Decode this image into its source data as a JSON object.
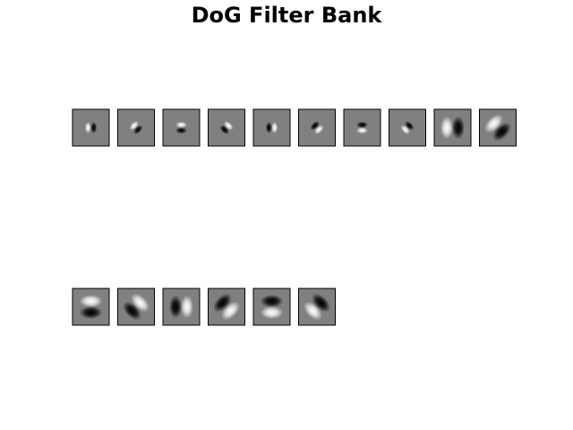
{
  "title": "DoG Filter Bank",
  "colors": {
    "background": "#ffffff",
    "filter_mid_gray": "#808080",
    "filter_positive": "#ffffff",
    "filter_negative": "#000000",
    "tile_border": "#000000"
  },
  "filter_bank": {
    "rows": [
      {
        "filters": [
          {
            "name": "filter-1",
            "polarity": "negative",
            "orientation_deg": 0,
            "scale": 1
          },
          {
            "name": "filter-2",
            "polarity": "negative",
            "orientation_deg": 45,
            "scale": 1
          },
          {
            "name": "filter-3",
            "polarity": "negative",
            "orientation_deg": 90,
            "scale": 1
          },
          {
            "name": "filter-4",
            "polarity": "negative",
            "orientation_deg": 135,
            "scale": 1
          },
          {
            "name": "filter-5",
            "polarity": "positive",
            "orientation_deg": 0,
            "scale": 1
          },
          {
            "name": "filter-6",
            "polarity": "positive",
            "orientation_deg": 45,
            "scale": 1
          },
          {
            "name": "filter-7",
            "polarity": "positive",
            "orientation_deg": 90,
            "scale": 1
          },
          {
            "name": "filter-8",
            "polarity": "positive",
            "orientation_deg": 135,
            "scale": 1
          },
          {
            "name": "filter-9",
            "polarity": "negative",
            "orientation_deg": 0,
            "scale": 2
          },
          {
            "name": "filter-10",
            "polarity": "negative",
            "orientation_deg": 45,
            "scale": 2
          }
        ]
      },
      {
        "filters": [
          {
            "name": "filter-11",
            "polarity": "negative",
            "orientation_deg": 90,
            "scale": 2
          },
          {
            "name": "filter-12",
            "polarity": "negative",
            "orientation_deg": 135,
            "scale": 2
          },
          {
            "name": "filter-13",
            "polarity": "positive",
            "orientation_deg": 0,
            "scale": 2
          },
          {
            "name": "filter-14",
            "polarity": "positive",
            "orientation_deg": 45,
            "scale": 2
          },
          {
            "name": "filter-15",
            "polarity": "positive",
            "orientation_deg": 90,
            "scale": 2
          },
          {
            "name": "filter-16",
            "polarity": "positive",
            "orientation_deg": 135,
            "scale": 2
          }
        ]
      }
    ]
  }
}
